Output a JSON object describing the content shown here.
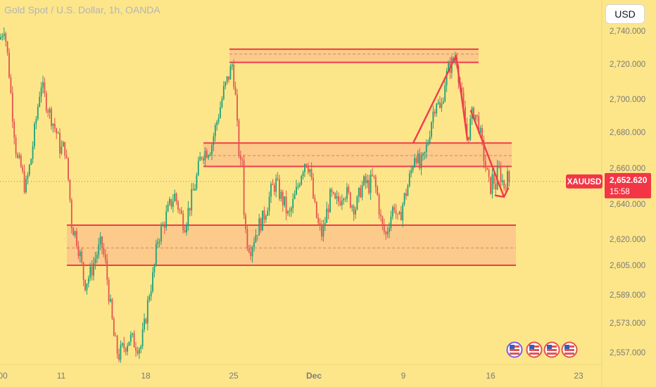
{
  "legend": {
    "title": "Gold Spot / U.S. Dollar, 1h, OANDA"
  },
  "currency_button": {
    "label": "USD"
  },
  "price_tag": {
    "symbol": "XAUUSD",
    "price": "2,652.620",
    "countdown": "15:58"
  },
  "colors": {
    "background": "#fde68a",
    "zone_fill": "#fcc68a",
    "zone_line": "#ef3d4a",
    "up_candle": "#1fa078",
    "down_candle": "#e2544f",
    "axis_text": "#7a7a7a",
    "tag_bg": "#f23645"
  },
  "chart_data": {
    "type": "candlestick",
    "title": "Gold Spot / U.S. Dollar, 1h, OANDA",
    "x_ticks": [
      "00",
      "11",
      "18",
      "25",
      "Dec",
      "9",
      "16",
      "23"
    ],
    "y_ticks": [
      "2,740.000",
      "2,720.000",
      "2,700.000",
      "2,680.000",
      "2,660.000",
      "2,640.000",
      "2,620.000",
      "2,605.000",
      "2,589.000",
      "2,573.000",
      "2,557.000"
    ],
    "ylim": [
      2552,
      2745
    ],
    "last_price": 2652.62,
    "price_path": [
      [
        0,
        2735
      ],
      [
        6,
        2743
      ],
      [
        12,
        2720
      ],
      [
        18,
        2690
      ],
      [
        24,
        2665
      ],
      [
        30,
        2660
      ],
      [
        36,
        2648
      ],
      [
        44,
        2665
      ],
      [
        52,
        2690
      ],
      [
        58,
        2710
      ],
      [
        64,
        2700
      ],
      [
        72,
        2690
      ],
      [
        80,
        2680
      ],
      [
        86,
        2670
      ],
      [
        92,
        2672
      ],
      [
        98,
        2650
      ],
      [
        102,
        2628
      ],
      [
        108,
        2622
      ],
      [
        114,
        2610
      ],
      [
        120,
        2595
      ],
      [
        128,
        2600
      ],
      [
        136,
        2610
      ],
      [
        144,
        2618
      ],
      [
        150,
        2605
      ],
      [
        156,
        2585
      ],
      [
        162,
        2565
      ],
      [
        168,
        2555
      ],
      [
        176,
        2560
      ],
      [
        184,
        2565
      ],
      [
        192,
        2562
      ],
      [
        200,
        2560
      ],
      [
        206,
        2573
      ],
      [
        212,
        2590
      ],
      [
        218,
        2600
      ],
      [
        224,
        2620
      ],
      [
        232,
        2628
      ],
      [
        240,
        2638
      ],
      [
        248,
        2645
      ],
      [
        256,
        2635
      ],
      [
        262,
        2628
      ],
      [
        270,
        2640
      ],
      [
        278,
        2652
      ],
      [
        286,
        2668
      ],
      [
        294,
        2670
      ],
      [
        300,
        2672
      ],
      [
        310,
        2690
      ],
      [
        318,
        2705
      ],
      [
        324,
        2712
      ],
      [
        330,
        2720
      ],
      [
        334,
        2705
      ],
      [
        338,
        2675
      ],
      [
        342,
        2660
      ],
      [
        344,
        2668
      ],
      [
        346,
        2640
      ],
      [
        350,
        2620
      ],
      [
        356,
        2615
      ],
      [
        362,
        2622
      ],
      [
        368,
        2628
      ],
      [
        374,
        2632
      ],
      [
        380,
        2640
      ],
      [
        386,
        2648
      ],
      [
        392,
        2652
      ],
      [
        398,
        2645
      ],
      [
        404,
        2640
      ],
      [
        410,
        2632
      ],
      [
        416,
        2640
      ],
      [
        422,
        2648
      ],
      [
        428,
        2658
      ],
      [
        434,
        2665
      ],
      [
        440,
        2660
      ],
      [
        446,
        2640
      ],
      [
        452,
        2628
      ],
      [
        458,
        2622
      ],
      [
        464,
        2635
      ],
      [
        470,
        2645
      ],
      [
        476,
        2640
      ],
      [
        482,
        2642
      ],
      [
        488,
        2648
      ],
      [
        494,
        2645
      ],
      [
        500,
        2640
      ],
      [
        506,
        2638
      ],
      [
        512,
        2648
      ],
      [
        518,
        2652
      ],
      [
        524,
        2650
      ],
      [
        530,
        2655
      ],
      [
        536,
        2645
      ],
      [
        542,
        2628
      ],
      [
        548,
        2622
      ],
      [
        554,
        2632
      ],
      [
        560,
        2640
      ],
      [
        566,
        2628
      ],
      [
        572,
        2640
      ],
      [
        578,
        2648
      ],
      [
        584,
        2658
      ],
      [
        590,
        2670
      ],
      [
        596,
        2660
      ],
      [
        602,
        2665
      ],
      [
        608,
        2675
      ],
      [
        614,
        2690
      ],
      [
        620,
        2700
      ],
      [
        626,
        2692
      ],
      [
        632,
        2710
      ],
      [
        638,
        2718
      ],
      [
        644,
        2722
      ],
      [
        648,
        2726
      ],
      [
        652,
        2712
      ],
      [
        656,
        2700
      ],
      [
        660,
        2688
      ],
      [
        664,
        2676
      ],
      [
        668,
        2685
      ],
      [
        672,
        2693
      ],
      [
        676,
        2690
      ],
      [
        680,
        2685
      ],
      [
        684,
        2674
      ],
      [
        688,
        2665
      ],
      [
        692,
        2656
      ],
      [
        696,
        2648
      ],
      [
        700,
        2655
      ],
      [
        704,
        2650
      ],
      [
        708,
        2660
      ],
      [
        712,
        2655
      ],
      [
        716,
        2650
      ],
      [
        720,
        2655
      ],
      [
        724,
        2652
      ]
    ],
    "zones": [
      {
        "top": 2729,
        "bottom": 2721,
        "mid": 2726,
        "x_start": 326,
        "x_end": 680
      },
      {
        "top": 2674,
        "bottom": 2661,
        "mid": 2667,
        "x_start": 289,
        "x_end": 727
      },
      {
        "top": 2628,
        "bottom": 2605,
        "mid": 2615,
        "x_start": 95,
        "x_end": 733
      }
    ],
    "annotations": [
      {
        "type": "line",
        "points": [
          [
            587,
            2674
          ],
          [
            648,
            2725
          ]
        ]
      },
      {
        "type": "line",
        "points": [
          [
            648,
            2725
          ],
          [
            664,
            2676
          ]
        ]
      },
      {
        "type": "line",
        "points": [
          [
            669,
            2693
          ],
          [
            716,
            2644
          ]
        ]
      },
      {
        "type": "arrowhead",
        "at": [
          716,
          2644
        ]
      }
    ]
  }
}
